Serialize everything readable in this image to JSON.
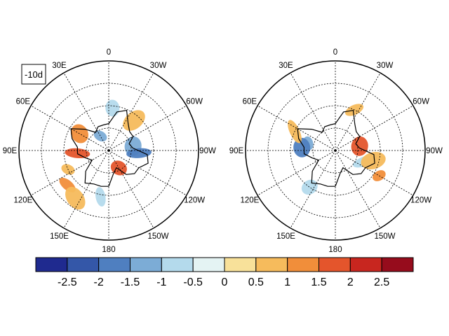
{
  "panel_tag": "-10d",
  "longitude_labels": [
    "0",
    "30W",
    "60W",
    "90W",
    "120W",
    "150W",
    "180",
    "150E",
    "120E",
    "90E",
    "60E",
    "30E"
  ],
  "colorbar": {
    "labels": [
      "-2.5",
      "-2",
      "-1.5",
      "-1",
      "-0.5",
      "0",
      "0.5",
      "1",
      "1.5",
      "2",
      "2.5"
    ],
    "colors": [
      "#1f2a8f",
      "#3457a8",
      "#4f7fc0",
      "#7cacd6",
      "#b4daec",
      "#e4f3f3",
      "#f8e19a",
      "#f6bb5c",
      "#f18e3a",
      "#e4552c",
      "#c8261f",
      "#960c1c"
    ]
  },
  "maps": [
    {
      "name": "left",
      "anomaly_patches": [
        {
          "level": "-1",
          "lon": 30,
          "lat": 75
        },
        {
          "level": "-1",
          "lon": -80,
          "lat": 68
        },
        {
          "level": "-1.5",
          "lon": -95,
          "lat": 63
        },
        {
          "level": "-0.5",
          "lon": -5,
          "lat": 52
        },
        {
          "level": "-0.5",
          "lon": 170,
          "lat": 48
        },
        {
          "level": "0.5",
          "lon": -40,
          "lat": 55
        },
        {
          "level": "0.5",
          "lon": 115,
          "lat": 50
        },
        {
          "level": "1",
          "lon": 60,
          "lat": 60
        },
        {
          "level": "1.5",
          "lon": 95,
          "lat": 62
        },
        {
          "level": "1.5",
          "lon": -150,
          "lat": 72
        },
        {
          "level": "1",
          "lon": 130,
          "lat": 42
        },
        {
          "level": "0.5",
          "lon": 145,
          "lat": 38
        }
      ]
    },
    {
      "name": "right",
      "anomaly_patches": [
        {
          "level": "-1",
          "lon": 75,
          "lat": 65
        },
        {
          "level": "-1.5",
          "lon": 85,
          "lat": 60
        },
        {
          "level": "-0.5",
          "lon": -110,
          "lat": 62
        },
        {
          "level": "-0.5",
          "lon": 145,
          "lat": 50
        },
        {
          "level": "0.5",
          "lon": -25,
          "lat": 50
        },
        {
          "level": "0.5",
          "lon": -105,
          "lat": 55
        },
        {
          "level": "1",
          "lon": -120,
          "lat": 45
        },
        {
          "level": "1.5",
          "lon": -80,
          "lat": 68
        },
        {
          "level": "0.5",
          "lon": 65,
          "lat": 50
        }
      ]
    }
  ]
}
